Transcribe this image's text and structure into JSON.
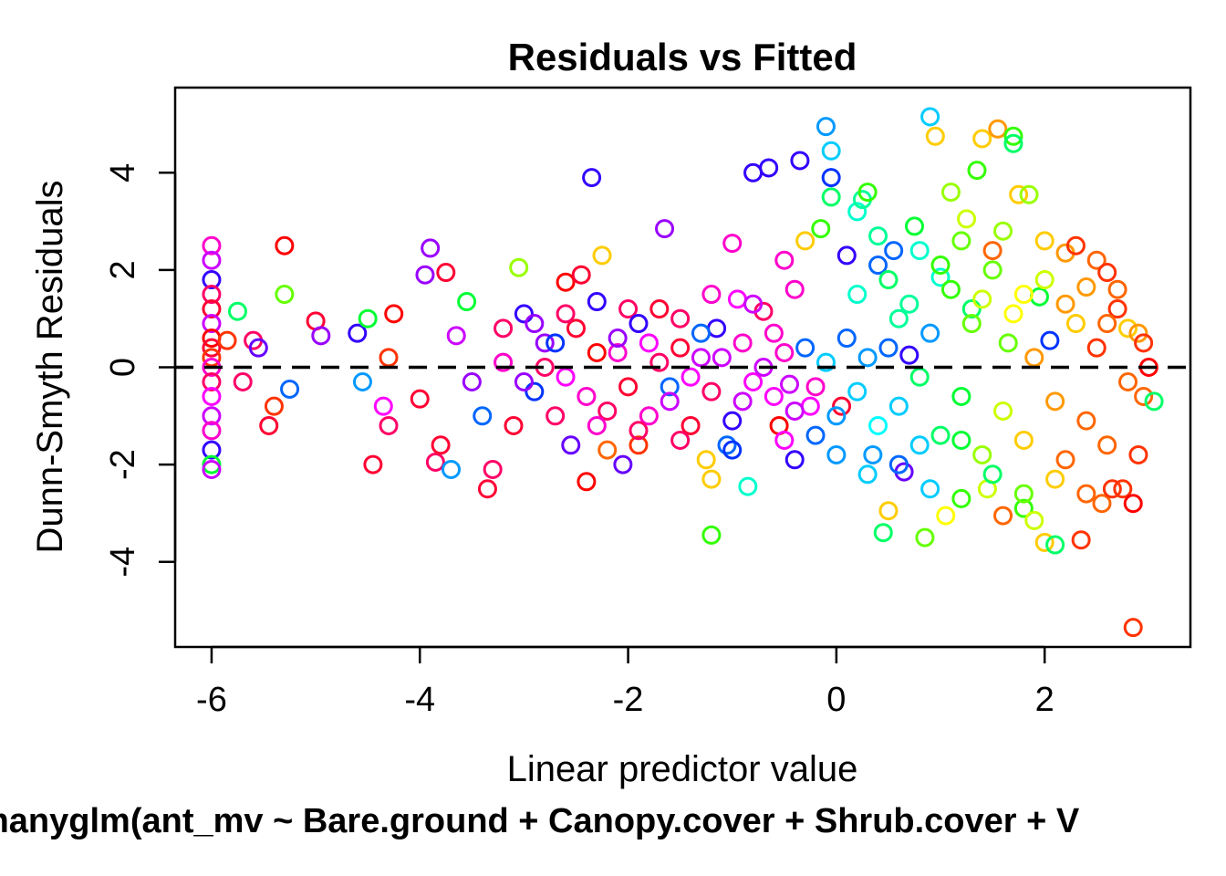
{
  "chart_data": {
    "type": "scatter",
    "title": "Residuals vs Fitted",
    "xlabel": "Linear predictor value",
    "ylabel": "Dunn-Smyth Residuals",
    "subtitle": "manyglm(ant_mv ~ Bare.ground + Canopy.cover + Shrub.cover + V",
    "xlim": [
      -6.35,
      3.4
    ],
    "ylim": [
      -5.75,
      5.75
    ],
    "x_ticks": [
      -6,
      -4,
      -2,
      0,
      2
    ],
    "y_ticks": [
      -4,
      -2,
      0,
      2,
      4
    ],
    "x_tick_labels": [
      "-6",
      "-4",
      "-2",
      "0",
      "2"
    ],
    "y_tick_labels": [
      "-4",
      "-2",
      "0",
      "2",
      "4"
    ],
    "reference_line": {
      "y": 0,
      "style": "dashed",
      "color": "#000000"
    },
    "grid": false,
    "legend": "none",
    "marker": "open-circle",
    "point_colors": "rainbow hue by species",
    "points": [
      [
        -6.0,
        2.5,
        "#ff00cc"
      ],
      [
        -6.0,
        2.2,
        "#cc00ff"
      ],
      [
        -6.0,
        1.8,
        "#3300ff"
      ],
      [
        -6.0,
        1.5,
        "#ff0066"
      ],
      [
        -6.0,
        1.2,
        "#ff0033"
      ],
      [
        -6.0,
        0.9,
        "#cc00ff"
      ],
      [
        -6.0,
        0.6,
        "#ff0000"
      ],
      [
        -6.0,
        0.4,
        "#ff0033"
      ],
      [
        -6.0,
        0.2,
        "#ff3300"
      ],
      [
        -6.0,
        0.0,
        "#ff00cc"
      ],
      [
        -6.0,
        -0.3,
        "#ff0066"
      ],
      [
        -6.0,
        -0.6,
        "#ff00ff"
      ],
      [
        -6.0,
        -1.0,
        "#cc00ff"
      ],
      [
        -6.0,
        -1.3,
        "#ff00cc"
      ],
      [
        -6.0,
        -1.7,
        "#3300ff"
      ],
      [
        -6.0,
        -2.0,
        "#00ff33"
      ],
      [
        -6.0,
        -2.1,
        "#cc00ff"
      ],
      [
        -5.85,
        0.55,
        "#ff3300"
      ],
      [
        -5.75,
        1.15,
        "#00ff66"
      ],
      [
        -5.7,
        -0.3,
        "#ff0066"
      ],
      [
        -5.6,
        0.55,
        "#ff0066"
      ],
      [
        -5.55,
        0.4,
        "#6600ff"
      ],
      [
        -5.45,
        -1.2,
        "#ff0033"
      ],
      [
        -5.4,
        -0.8,
        "#ff3300"
      ],
      [
        -5.3,
        2.5,
        "#ff0000"
      ],
      [
        -5.3,
        1.5,
        "#66ff00"
      ],
      [
        -5.25,
        -0.45,
        "#0066ff"
      ],
      [
        -5.0,
        0.95,
        "#ff0033"
      ],
      [
        -4.95,
        0.65,
        "#9900ff"
      ],
      [
        -4.6,
        0.7,
        "#3300ff"
      ],
      [
        -4.5,
        1.0,
        "#00ff33"
      ],
      [
        -4.55,
        -0.3,
        "#0099ff"
      ],
      [
        -4.45,
        -2.0,
        "#ff0033"
      ],
      [
        -4.35,
        -0.8,
        "#ff00ff"
      ],
      [
        -4.3,
        -1.2,
        "#ff0066"
      ],
      [
        -4.3,
        0.2,
        "#ff3300"
      ],
      [
        -4.25,
        1.1,
        "#ff0000"
      ],
      [
        -4.0,
        -0.65,
        "#ff0033"
      ],
      [
        -3.95,
        1.9,
        "#9900ff"
      ],
      [
        -3.9,
        2.45,
        "#9900ff"
      ],
      [
        -3.85,
        -1.95,
        "#ff0066"
      ],
      [
        -3.8,
        -1.6,
        "#ff0033"
      ],
      [
        -3.75,
        1.95,
        "#ff0033"
      ],
      [
        -3.7,
        -2.1,
        "#0099ff"
      ],
      [
        -3.65,
        0.65,
        "#cc00ff"
      ],
      [
        -3.55,
        1.35,
        "#00ff33"
      ],
      [
        -3.5,
        -0.3,
        "#9900ff"
      ],
      [
        -3.4,
        -1.0,
        "#0066ff"
      ],
      [
        -3.35,
        -2.5,
        "#ff0033"
      ],
      [
        -3.3,
        -2.1,
        "#ff0066"
      ],
      [
        -3.2,
        0.8,
        "#ff0066"
      ],
      [
        -3.1,
        -1.2,
        "#ff0033"
      ],
      [
        -3.05,
        2.05,
        "#99ff00"
      ],
      [
        -3.0,
        1.1,
        "#3300ff"
      ],
      [
        -2.9,
        -0.5,
        "#0033ff"
      ],
      [
        -2.8,
        0.5,
        "#9900ff"
      ],
      [
        -2.7,
        -1.0,
        "#ff0066"
      ],
      [
        -2.6,
        1.75,
        "#ff0000"
      ],
      [
        -2.55,
        -1.6,
        "#6600ff"
      ],
      [
        -2.45,
        1.9,
        "#ff0033"
      ],
      [
        -2.4,
        -2.35,
        "#ff0000"
      ],
      [
        -2.35,
        3.9,
        "#3300ff"
      ],
      [
        -2.3,
        1.35,
        "#3300ff"
      ],
      [
        -2.25,
        2.3,
        "#ffcc00"
      ],
      [
        -2.2,
        -1.7,
        "#ff6600"
      ],
      [
        -2.1,
        0.3,
        "#ff00cc"
      ],
      [
        -2.05,
        -2.0,
        "#6600ff"
      ],
      [
        -2.0,
        1.2,
        "#ff0066"
      ],
      [
        -1.9,
        -1.6,
        "#ff3300"
      ],
      [
        -1.8,
        0.5,
        "#ff00ff"
      ],
      [
        -1.65,
        2.85,
        "#9900ff"
      ],
      [
        -1.6,
        -0.4,
        "#0066ff"
      ],
      [
        -1.5,
        1.0,
        "#ff0066"
      ],
      [
        -1.4,
        -1.2,
        "#ff0033"
      ],
      [
        -1.3,
        0.2,
        "#cc00ff"
      ],
      [
        -1.25,
        -1.9,
        "#ffcc00"
      ],
      [
        -1.2,
        -2.3,
        "#ffcc00"
      ],
      [
        -1.2,
        -3.45,
        "#33ff00"
      ],
      [
        -1.15,
        0.8,
        "#3300ff"
      ],
      [
        -1.05,
        -1.6,
        "#0066ff"
      ],
      [
        -1.0,
        2.55,
        "#ff00cc"
      ],
      [
        -0.95,
        1.4,
        "#ff00ff"
      ],
      [
        -0.9,
        -0.7,
        "#cc00ff"
      ],
      [
        -0.85,
        -2.45,
        "#00ffcc"
      ],
      [
        -0.8,
        4.0,
        "#3300ff"
      ],
      [
        -0.7,
        1.15,
        "#ff0066"
      ],
      [
        -0.65,
        4.1,
        "#3300ff"
      ],
      [
        -0.6,
        0.7,
        "#ff00cc"
      ],
      [
        -0.55,
        -1.2,
        "#ff0000"
      ],
      [
        -0.5,
        2.2,
        "#ff00cc"
      ],
      [
        -0.45,
        -0.35,
        "#cc00ff"
      ],
      [
        -0.4,
        -1.9,
        "#3300ff"
      ],
      [
        -0.35,
        4.25,
        "#3300ff"
      ],
      [
        -0.3,
        2.6,
        "#ffcc00"
      ],
      [
        -0.25,
        -0.8,
        "#ff00ff"
      ],
      [
        -0.2,
        -1.4,
        "#0066ff"
      ],
      [
        -0.15,
        2.85,
        "#33ff00"
      ],
      [
        -0.1,
        4.95,
        "#0099ff"
      ],
      [
        -0.05,
        4.45,
        "#00ccff"
      ],
      [
        -0.05,
        3.5,
        "#00ff66"
      ],
      [
        -0.05,
        3.9,
        "#0033ff"
      ],
      [
        0.05,
        -0.8,
        "#ff0033"
      ],
      [
        0.1,
        2.3,
        "#3300ff"
      ],
      [
        0.2,
        3.2,
        "#00ffcc"
      ],
      [
        0.25,
        3.45,
        "#00ff99"
      ],
      [
        0.3,
        3.6,
        "#33ff00"
      ],
      [
        0.35,
        -1.8,
        "#0099ff"
      ],
      [
        0.4,
        2.1,
        "#0066ff"
      ],
      [
        0.45,
        -3.4,
        "#00ff66"
      ],
      [
        0.5,
        -2.95,
        "#ffcc00"
      ],
      [
        0.55,
        2.4,
        "#0066ff"
      ],
      [
        0.6,
        1.0,
        "#00ff99"
      ],
      [
        0.65,
        -2.15,
        "#6600ff"
      ],
      [
        0.7,
        0.25,
        "#3300ff"
      ],
      [
        0.75,
        2.9,
        "#00ff33"
      ],
      [
        0.8,
        -1.6,
        "#00ccff"
      ],
      [
        0.85,
        -3.5,
        "#66ff00"
      ],
      [
        0.9,
        5.15,
        "#00ccff"
      ],
      [
        0.95,
        4.75,
        "#ffcc00"
      ],
      [
        1.0,
        1.85,
        "#00ffcc"
      ],
      [
        1.05,
        -3.05,
        "#ffff00"
      ],
      [
        1.1,
        3.6,
        "#99ff00"
      ],
      [
        1.2,
        -1.5,
        "#00ff33"
      ],
      [
        1.25,
        3.05,
        "#ccff00"
      ],
      [
        1.3,
        1.2,
        "#00ff66"
      ],
      [
        1.35,
        4.05,
        "#33ff00"
      ],
      [
        1.4,
        4.7,
        "#ffcc00"
      ],
      [
        1.45,
        -2.5,
        "#ccff00"
      ],
      [
        1.5,
        2.4,
        "#ff6600"
      ],
      [
        1.55,
        4.9,
        "#ff9900"
      ],
      [
        1.6,
        -3.05,
        "#ff6600"
      ],
      [
        1.65,
        0.5,
        "#66ff00"
      ],
      [
        1.7,
        4.75,
        "#33ff00"
      ],
      [
        1.7,
        4.6,
        "#00ff66"
      ],
      [
        1.75,
        3.55,
        "#ffcc00"
      ],
      [
        1.8,
        -2.9,
        "#33ff00"
      ],
      [
        1.85,
        3.55,
        "#99ff00"
      ],
      [
        1.9,
        -3.15,
        "#ccff00"
      ],
      [
        1.95,
        1.45,
        "#00ff33"
      ],
      [
        2.0,
        -3.6,
        "#ffcc00"
      ],
      [
        2.05,
        0.55,
        "#0033ff"
      ],
      [
        2.1,
        -3.65,
        "#00ff66"
      ],
      [
        2.2,
        2.35,
        "#ff9900"
      ],
      [
        2.3,
        2.5,
        "#ff3300"
      ],
      [
        2.35,
        -3.55,
        "#ff3300"
      ],
      [
        2.4,
        1.65,
        "#ff9900"
      ],
      [
        2.5,
        2.2,
        "#ff6600"
      ],
      [
        2.55,
        -2.8,
        "#ff6600"
      ],
      [
        2.6,
        1.95,
        "#ff3300"
      ],
      [
        2.65,
        -2.5,
        "#ff3300"
      ],
      [
        2.7,
        1.6,
        "#ff6600"
      ],
      [
        2.75,
        -2.5,
        "#ff3300"
      ],
      [
        2.8,
        0.8,
        "#ffcc00"
      ],
      [
        2.85,
        -2.8,
        "#ff0000"
      ],
      [
        2.85,
        -5.35,
        "#ff3300"
      ],
      [
        2.9,
        0.7,
        "#ff9900"
      ],
      [
        2.95,
        -0.6,
        "#ff6600"
      ],
      [
        3.0,
        0.0,
        "#ff0000"
      ],
      [
        3.05,
        -0.7,
        "#00ff66"
      ],
      [
        2.95,
        0.5,
        "#ff3300"
      ],
      [
        -3.2,
        0.1,
        "#ff00cc"
      ],
      [
        -3.0,
        -0.3,
        "#9900ff"
      ],
      [
        -2.8,
        0.0,
        "#ff0066"
      ],
      [
        -2.7,
        0.5,
        "#0033ff"
      ],
      [
        -2.6,
        -0.2,
        "#ff00ff"
      ],
      [
        -2.5,
        0.8,
        "#ff0033"
      ],
      [
        -2.4,
        -0.6,
        "#ff00cc"
      ],
      [
        -2.3,
        0.3,
        "#ff0000"
      ],
      [
        -2.2,
        -0.9,
        "#ff0066"
      ],
      [
        -2.1,
        0.6,
        "#9900ff"
      ],
      [
        -2.0,
        -0.4,
        "#ff0033"
      ],
      [
        -1.9,
        0.9,
        "#3300ff"
      ],
      [
        -1.8,
        -1.0,
        "#ff00cc"
      ],
      [
        -1.7,
        0.1,
        "#ff0066"
      ],
      [
        -1.6,
        -0.7,
        "#cc00ff"
      ],
      [
        -1.5,
        0.4,
        "#ff0033"
      ],
      [
        -1.4,
        -0.2,
        "#ff00ff"
      ],
      [
        -1.3,
        0.7,
        "#0066ff"
      ],
      [
        -1.2,
        -0.5,
        "#ff0066"
      ],
      [
        -1.1,
        0.2,
        "#cc00ff"
      ],
      [
        -1.0,
        -1.1,
        "#3300ff"
      ],
      [
        -0.9,
        0.5,
        "#ff00cc"
      ],
      [
        -0.8,
        -0.3,
        "#ff00ff"
      ],
      [
        -0.7,
        0.0,
        "#cc00ff"
      ],
      [
        -0.6,
        -0.6,
        "#ff00ff"
      ],
      [
        -0.5,
        0.3,
        "#ff00cc"
      ],
      [
        -0.4,
        -0.9,
        "#cc00ff"
      ],
      [
        -0.3,
        0.4,
        "#0066ff"
      ],
      [
        -0.2,
        -0.4,
        "#ff00cc"
      ],
      [
        -0.1,
        0.1,
        "#00ccff"
      ],
      [
        0.0,
        -1.0,
        "#0099ff"
      ],
      [
        0.1,
        0.6,
        "#0066ff"
      ],
      [
        0.2,
        -0.5,
        "#00ccff"
      ],
      [
        0.3,
        0.2,
        "#0099ff"
      ],
      [
        0.4,
        -1.2,
        "#00ffff"
      ],
      [
        0.5,
        0.4,
        "#0066ff"
      ],
      [
        0.6,
        -0.8,
        "#00ccff"
      ],
      [
        0.7,
        1.3,
        "#00ff99"
      ],
      [
        0.8,
        -0.2,
        "#00ff66"
      ],
      [
        0.9,
        0.7,
        "#0099ff"
      ],
      [
        1.0,
        -1.4,
        "#00ff66"
      ],
      [
        1.1,
        1.6,
        "#33ff00"
      ],
      [
        1.2,
        -0.6,
        "#00ff33"
      ],
      [
        1.3,
        0.9,
        "#66ff00"
      ],
      [
        1.4,
        -1.8,
        "#99ff00"
      ],
      [
        1.5,
        2.0,
        "#66ff00"
      ],
      [
        1.6,
        -0.9,
        "#ccff00"
      ],
      [
        1.7,
        1.1,
        "#ffff00"
      ],
      [
        1.8,
        -1.5,
        "#ffcc00"
      ],
      [
        1.9,
        0.2,
        "#ff9900"
      ],
      [
        2.0,
        1.8,
        "#ccff00"
      ],
      [
        2.1,
        -0.7,
        "#ff9900"
      ],
      [
        2.2,
        -1.9,
        "#ff6600"
      ],
      [
        2.3,
        0.9,
        "#ffcc00"
      ],
      [
        2.4,
        -1.1,
        "#ff6600"
      ],
      [
        2.5,
        0.4,
        "#ff3300"
      ],
      [
        2.6,
        -1.6,
        "#ff6600"
      ],
      [
        2.7,
        1.2,
        "#ff3300"
      ],
      [
        2.8,
        -0.3,
        "#ff6600"
      ],
      [
        2.9,
        -1.8,
        "#ff3300"
      ],
      [
        0.3,
        -2.2,
        "#00ccff"
      ],
      [
        0.6,
        -2.0,
        "#0066ff"
      ],
      [
        0.9,
        -2.5,
        "#00ccff"
      ],
      [
        1.2,
        -2.7,
        "#33ff00"
      ],
      [
        1.5,
        -2.2,
        "#00ff66"
      ],
      [
        1.8,
        -2.6,
        "#66ff00"
      ],
      [
        2.1,
        -2.3,
        "#ffcc00"
      ],
      [
        2.4,
        -2.6,
        "#ff6600"
      ],
      [
        0.4,
        2.7,
        "#00ff99"
      ],
      [
        0.8,
        2.4,
        "#00ffcc"
      ],
      [
        1.2,
        2.6,
        "#66ff00"
      ],
      [
        1.6,
        2.8,
        "#99ff00"
      ],
      [
        2.0,
        2.6,
        "#ffcc00"
      ],
      [
        0.2,
        1.5,
        "#00ffcc"
      ],
      [
        0.5,
        1.8,
        "#00ff66"
      ],
      [
        1.0,
        2.1,
        "#33ff00"
      ],
      [
        1.4,
        1.4,
        "#ccff00"
      ],
      [
        1.8,
        1.5,
        "#ffff00"
      ],
      [
        2.2,
        1.3,
        "#ff9900"
      ],
      [
        2.6,
        0.9,
        "#ff6600"
      ],
      [
        -1.5,
        -1.5,
        "#ff0066"
      ],
      [
        -1.0,
        -1.7,
        "#0033ff"
      ],
      [
        -0.5,
        -1.5,
        "#ff00ff"
      ],
      [
        0.0,
        -1.8,
        "#0099ff"
      ],
      [
        -2.3,
        -1.2,
        "#ff00cc"
      ],
      [
        -1.9,
        -1.3,
        "#ff0066"
      ],
      [
        -1.2,
        1.5,
        "#ff00cc"
      ],
      [
        -0.8,
        1.3,
        "#cc00ff"
      ],
      [
        -0.4,
        1.6,
        "#ff00cc"
      ],
      [
        -1.7,
        1.2,
        "#ff0033"
      ],
      [
        -2.6,
        1.1,
        "#ff0066"
      ],
      [
        -2.9,
        0.9,
        "#9900ff"
      ]
    ]
  }
}
